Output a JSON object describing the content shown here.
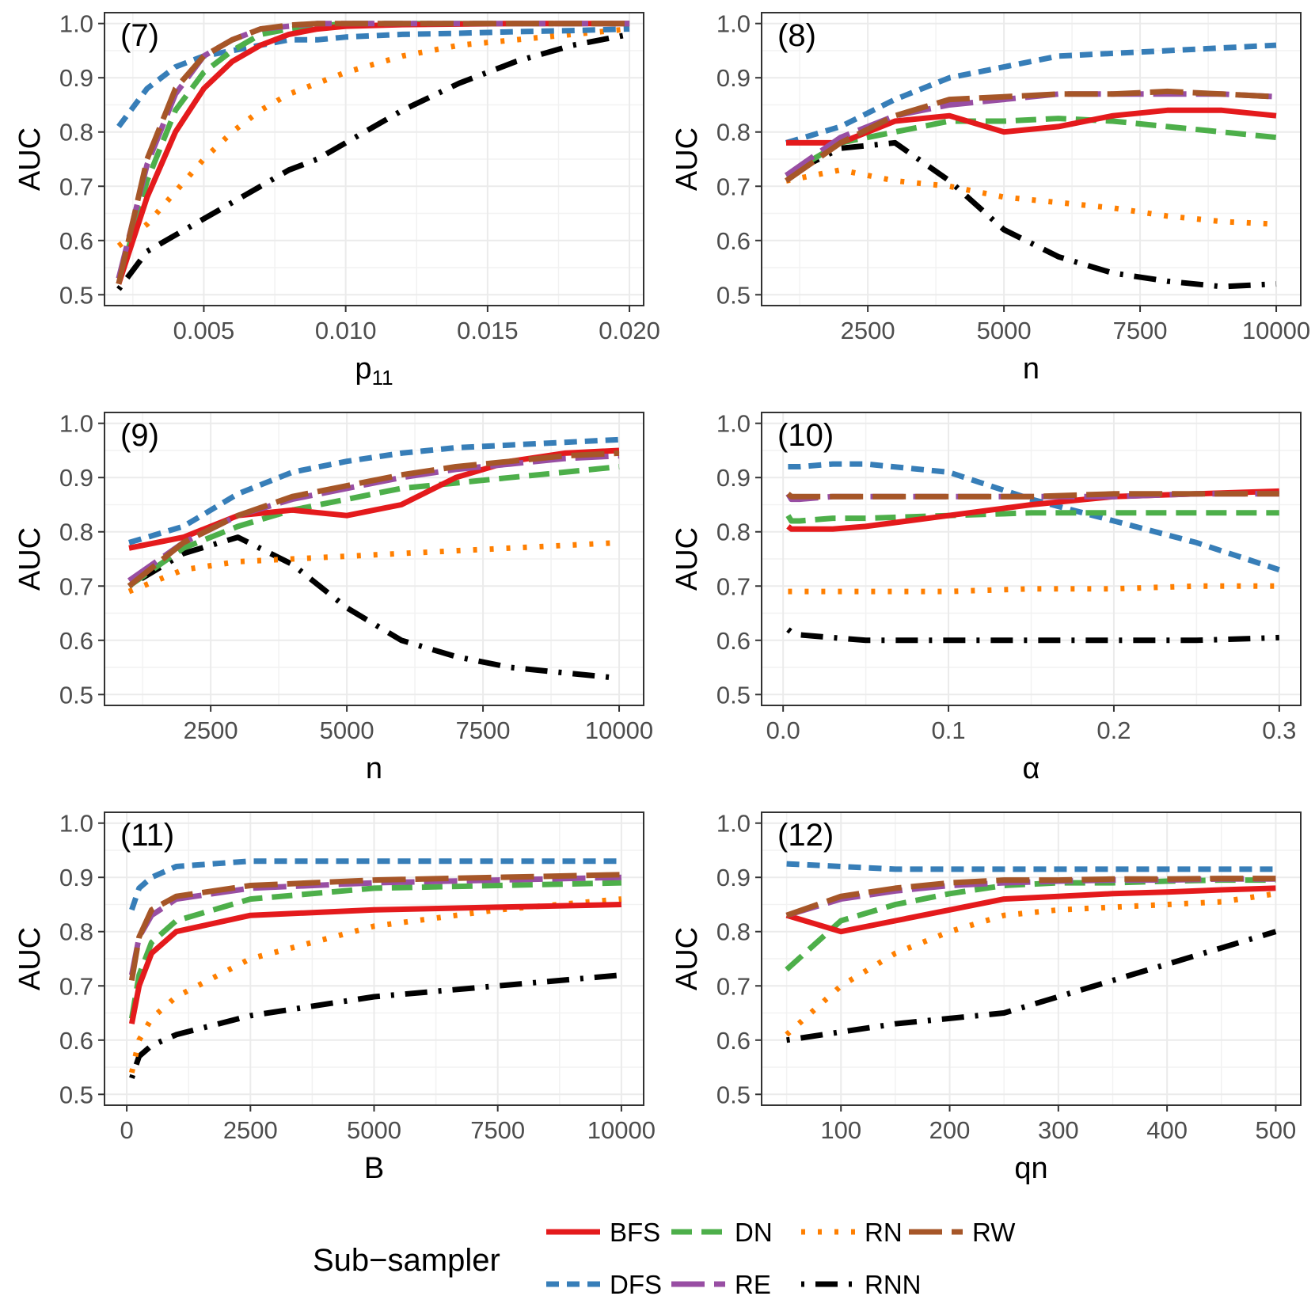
{
  "figure_type": "multi-panel line chart",
  "y_axis_label": "AUC",
  "legend": {
    "title": "Sub−sampler",
    "position": "bottom-center",
    "entries": [
      "BFS",
      "DN",
      "RN",
      "RW",
      "DFS",
      "RE",
      "RNN"
    ]
  },
  "series_styles": {
    "BFS": {
      "color": "#e41a1c",
      "dash": "solid"
    },
    "DFS": {
      "color": "#377eb8",
      "dash": "dashed-short"
    },
    "DN": {
      "color": "#4daf4a",
      "dash": "dashed"
    },
    "RE": {
      "color": "#984ea3",
      "dash": "long-dashed"
    },
    "RN": {
      "color": "#ff7f00",
      "dash": "dotted"
    },
    "RNN": {
      "color": "#000000",
      "dash": "dot-dash"
    },
    "RW": {
      "color": "#a65628",
      "dash": "long-dashed"
    }
  },
  "chart_data": [
    {
      "type": "line",
      "tag": "(7)",
      "xlabel": "p",
      "xlabel_sub": "11",
      "ylabel": "AUC",
      "xlim": [
        0.0015,
        0.0205
      ],
      "ylim": [
        0.48,
        1.02
      ],
      "xticks": [
        0.005,
        0.01,
        0.015,
        0.02
      ],
      "xtick_labels": [
        "0.005",
        "0.010",
        "0.015",
        "0.020"
      ],
      "yticks": [
        0.5,
        0.6,
        0.7,
        0.8,
        0.9,
        1.0
      ],
      "ytick_labels": [
        "0.5",
        "0.6",
        "0.7",
        "0.8",
        "0.9",
        "1.0"
      ],
      "x": [
        0.002,
        0.003,
        0.004,
        0.005,
        0.006,
        0.007,
        0.008,
        0.009,
        0.01,
        0.012,
        0.014,
        0.016,
        0.018,
        0.02
      ],
      "series": [
        {
          "name": "BFS",
          "values": [
            0.52,
            0.68,
            0.8,
            0.88,
            0.93,
            0.96,
            0.98,
            0.99,
            0.995,
            0.998,
            0.999,
            1.0,
            1.0,
            1.0
          ]
        },
        {
          "name": "DFS",
          "values": [
            0.81,
            0.88,
            0.92,
            0.94,
            0.95,
            0.96,
            0.97,
            0.97,
            0.975,
            0.98,
            0.982,
            0.985,
            0.987,
            0.99
          ]
        },
        {
          "name": "DN",
          "values": [
            0.52,
            0.71,
            0.84,
            0.91,
            0.95,
            0.98,
            0.99,
            0.995,
            1.0,
            1.0,
            1.0,
            1.0,
            1.0,
            1.0
          ]
        },
        {
          "name": "RE",
          "values": [
            0.53,
            0.74,
            0.87,
            0.94,
            0.97,
            0.99,
            0.995,
            1.0,
            1.0,
            1.0,
            1.0,
            1.0,
            1.0,
            1.0
          ]
        },
        {
          "name": "RN",
          "values": [
            0.59,
            0.63,
            0.69,
            0.75,
            0.8,
            0.84,
            0.87,
            0.89,
            0.91,
            0.94,
            0.96,
            0.97,
            0.98,
            0.99
          ]
        },
        {
          "name": "RNN",
          "values": [
            0.51,
            0.58,
            0.61,
            0.64,
            0.67,
            0.7,
            0.73,
            0.75,
            0.78,
            0.84,
            0.89,
            0.93,
            0.96,
            0.98
          ]
        },
        {
          "name": "RW",
          "values": [
            0.52,
            0.75,
            0.88,
            0.94,
            0.97,
            0.99,
            0.997,
            1.0,
            1.0,
            1.0,
            1.0,
            1.0,
            1.0,
            1.0
          ]
        }
      ]
    },
    {
      "type": "line",
      "tag": "(8)",
      "xlabel": "n",
      "ylabel": "AUC",
      "xlim": [
        550,
        10450
      ],
      "ylim": [
        0.48,
        1.02
      ],
      "xticks": [
        2500,
        5000,
        7500,
        10000
      ],
      "xtick_labels": [
        "2500",
        "5000",
        "7500",
        "10000"
      ],
      "yticks": [
        0.5,
        0.6,
        0.7,
        0.8,
        0.9,
        1.0
      ],
      "ytick_labels": [
        "0.5",
        "0.6",
        "0.7",
        "0.8",
        "0.9",
        "1.0"
      ],
      "x": [
        1000,
        2000,
        3000,
        4000,
        5000,
        6000,
        7000,
        8000,
        9000,
        10000
      ],
      "series": [
        {
          "name": "BFS",
          "values": [
            0.78,
            0.78,
            0.82,
            0.83,
            0.8,
            0.81,
            0.83,
            0.84,
            0.84,
            0.83
          ]
        },
        {
          "name": "DFS",
          "values": [
            0.78,
            0.81,
            0.86,
            0.9,
            0.92,
            0.94,
            0.945,
            0.95,
            0.955,
            0.96
          ]
        },
        {
          "name": "DN",
          "values": [
            0.72,
            0.78,
            0.8,
            0.82,
            0.82,
            0.825,
            0.82,
            0.81,
            0.8,
            0.79
          ]
        },
        {
          "name": "RE",
          "values": [
            0.72,
            0.79,
            0.83,
            0.85,
            0.86,
            0.87,
            0.87,
            0.87,
            0.87,
            0.865
          ]
        },
        {
          "name": "RN",
          "values": [
            0.71,
            0.73,
            0.71,
            0.7,
            0.68,
            0.67,
            0.66,
            0.645,
            0.635,
            0.63
          ]
        },
        {
          "name": "RNN",
          "values": [
            0.72,
            0.77,
            0.78,
            0.71,
            0.62,
            0.57,
            0.54,
            0.525,
            0.515,
            0.52
          ]
        },
        {
          "name": "RW",
          "values": [
            0.71,
            0.78,
            0.83,
            0.86,
            0.865,
            0.87,
            0.87,
            0.875,
            0.87,
            0.865
          ]
        }
      ]
    },
    {
      "type": "line",
      "tag": "(9)",
      "xlabel": "n",
      "ylabel": "AUC",
      "xlim": [
        550,
        10450
      ],
      "ylim": [
        0.48,
        1.02
      ],
      "xticks": [
        2500,
        5000,
        7500,
        10000
      ],
      "xtick_labels": [
        "2500",
        "5000",
        "7500",
        "10000"
      ],
      "yticks": [
        0.5,
        0.6,
        0.7,
        0.8,
        0.9,
        1.0
      ],
      "ytick_labels": [
        "0.5",
        "0.6",
        "0.7",
        "0.8",
        "0.9",
        "1.0"
      ],
      "x": [
        1000,
        2000,
        3000,
        4000,
        5000,
        6000,
        7000,
        8000,
        9000,
        10000
      ],
      "series": [
        {
          "name": "BFS",
          "values": [
            0.77,
            0.79,
            0.83,
            0.84,
            0.83,
            0.85,
            0.9,
            0.93,
            0.945,
            0.95
          ]
        },
        {
          "name": "DFS",
          "values": [
            0.78,
            0.81,
            0.87,
            0.91,
            0.93,
            0.945,
            0.955,
            0.96,
            0.965,
            0.97
          ]
        },
        {
          "name": "DN",
          "values": [
            0.7,
            0.77,
            0.81,
            0.84,
            0.86,
            0.88,
            0.89,
            0.9,
            0.91,
            0.92
          ]
        },
        {
          "name": "RE",
          "values": [
            0.71,
            0.78,
            0.83,
            0.86,
            0.88,
            0.9,
            0.915,
            0.925,
            0.935,
            0.94
          ]
        },
        {
          "name": "RN",
          "values": [
            0.69,
            0.73,
            0.745,
            0.75,
            0.755,
            0.76,
            0.765,
            0.77,
            0.775,
            0.78
          ]
        },
        {
          "name": "RNN",
          "values": [
            0.7,
            0.76,
            0.79,
            0.74,
            0.66,
            0.6,
            0.57,
            0.55,
            0.54,
            0.53
          ]
        },
        {
          "name": "RW",
          "values": [
            0.7,
            0.78,
            0.83,
            0.865,
            0.885,
            0.905,
            0.92,
            0.93,
            0.94,
            0.945
          ]
        }
      ]
    },
    {
      "type": "line",
      "tag": "(10)",
      "xlabel": "α",
      "ylabel": "AUC",
      "xlim": [
        -0.013,
        0.313
      ],
      "ylim": [
        0.48,
        1.02
      ],
      "xticks": [
        0.0,
        0.1,
        0.2,
        0.3
      ],
      "xtick_labels": [
        "0.0",
        "0.1",
        "0.2",
        "0.3"
      ],
      "yticks": [
        0.5,
        0.6,
        0.7,
        0.8,
        0.9,
        1.0
      ],
      "ytick_labels": [
        "0.5",
        "0.6",
        "0.7",
        "0.8",
        "0.9",
        "1.0"
      ],
      "x": [
        0.003,
        0.005,
        0.01,
        0.03,
        0.05,
        0.1,
        0.15,
        0.2,
        0.25,
        0.3
      ],
      "series": [
        {
          "name": "BFS",
          "values": [
            0.81,
            0.805,
            0.805,
            0.805,
            0.81,
            0.83,
            0.85,
            0.865,
            0.87,
            0.875
          ]
        },
        {
          "name": "DFS",
          "values": [
            0.92,
            0.92,
            0.92,
            0.925,
            0.925,
            0.91,
            0.86,
            0.82,
            0.78,
            0.73
          ]
        },
        {
          "name": "DN",
          "values": [
            0.83,
            0.82,
            0.82,
            0.825,
            0.825,
            0.83,
            0.835,
            0.835,
            0.835,
            0.835
          ]
        },
        {
          "name": "RE",
          "values": [
            0.87,
            0.86,
            0.86,
            0.865,
            0.865,
            0.865,
            0.865,
            0.865,
            0.87,
            0.87
          ]
        },
        {
          "name": "RN",
          "values": [
            0.69,
            0.69,
            0.69,
            0.69,
            0.69,
            0.69,
            0.695,
            0.695,
            0.7,
            0.7
          ]
        },
        {
          "name": "RNN",
          "values": [
            0.62,
            0.615,
            0.61,
            0.605,
            0.6,
            0.6,
            0.6,
            0.6,
            0.6,
            0.605
          ]
        },
        {
          "name": "RW",
          "values": [
            0.87,
            0.865,
            0.865,
            0.865,
            0.865,
            0.865,
            0.865,
            0.87,
            0.87,
            0.87
          ]
        }
      ]
    },
    {
      "type": "line",
      "tag": "(11)",
      "xlabel": "B",
      "ylabel": "AUC",
      "xlim": [
        -450,
        10450
      ],
      "ylim": [
        0.48,
        1.02
      ],
      "xticks": [
        0,
        2500,
        5000,
        7500,
        10000
      ],
      "xtick_labels": [
        "0",
        "2500",
        "5000",
        "7500",
        "10000"
      ],
      "yticks": [
        0.5,
        0.6,
        0.7,
        0.8,
        0.9,
        1.0
      ],
      "ytick_labels": [
        "0.5",
        "0.6",
        "0.7",
        "0.8",
        "0.9",
        "1.0"
      ],
      "x": [
        100,
        250,
        500,
        1000,
        2500,
        5000,
        7500,
        10000
      ],
      "series": [
        {
          "name": "BFS",
          "values": [
            0.63,
            0.7,
            0.76,
            0.8,
            0.83,
            0.84,
            0.845,
            0.85
          ]
        },
        {
          "name": "DFS",
          "values": [
            0.84,
            0.88,
            0.9,
            0.92,
            0.93,
            0.93,
            0.93,
            0.93
          ]
        },
        {
          "name": "DN",
          "values": [
            0.64,
            0.72,
            0.78,
            0.82,
            0.86,
            0.88,
            0.885,
            0.89
          ]
        },
        {
          "name": "RE",
          "values": [
            0.72,
            0.79,
            0.83,
            0.86,
            0.88,
            0.89,
            0.895,
            0.9
          ]
        },
        {
          "name": "RN",
          "values": [
            0.54,
            0.6,
            0.64,
            0.68,
            0.75,
            0.81,
            0.84,
            0.86
          ]
        },
        {
          "name": "RNN",
          "values": [
            0.53,
            0.57,
            0.59,
            0.61,
            0.645,
            0.68,
            0.7,
            0.72
          ]
        },
        {
          "name": "RW",
          "values": [
            0.71,
            0.79,
            0.84,
            0.865,
            0.885,
            0.895,
            0.9,
            0.905
          ]
        }
      ]
    },
    {
      "type": "line",
      "tag": "(12)",
      "xlabel": "qn",
      "ylabel": "AUC",
      "xlim": [
        27,
        523
      ],
      "ylim": [
        0.48,
        1.02
      ],
      "xticks": [
        100,
        200,
        300,
        400,
        500
      ],
      "xtick_labels": [
        "100",
        "200",
        "300",
        "400",
        "500"
      ],
      "yticks": [
        0.5,
        0.6,
        0.7,
        0.8,
        0.9,
        1.0
      ],
      "ytick_labels": [
        "0.5",
        "0.6",
        "0.7",
        "0.8",
        "0.9",
        "1.0"
      ],
      "x": [
        50,
        100,
        150,
        200,
        250,
        300,
        350,
        400,
        450,
        500
      ],
      "series": [
        {
          "name": "BFS",
          "values": [
            0.83,
            0.8,
            0.82,
            0.84,
            0.86,
            0.865,
            0.87,
            0.873,
            0.877,
            0.88
          ]
        },
        {
          "name": "DFS",
          "values": [
            0.925,
            0.92,
            0.915,
            0.915,
            0.915,
            0.915,
            0.915,
            0.915,
            0.915,
            0.915
          ]
        },
        {
          "name": "DN",
          "values": [
            0.73,
            0.82,
            0.85,
            0.87,
            0.885,
            0.89,
            0.89,
            0.893,
            0.895,
            0.895
          ]
        },
        {
          "name": "RE",
          "values": [
            0.83,
            0.86,
            0.875,
            0.885,
            0.89,
            0.893,
            0.895,
            0.895,
            0.897,
            0.897
          ]
        },
        {
          "name": "RN",
          "values": [
            0.61,
            0.7,
            0.76,
            0.8,
            0.83,
            0.84,
            0.845,
            0.85,
            0.855,
            0.87
          ]
        },
        {
          "name": "RNN",
          "values": [
            0.6,
            0.615,
            0.63,
            0.64,
            0.65,
            0.68,
            0.71,
            0.74,
            0.77,
            0.8
          ]
        },
        {
          "name": "RW",
          "values": [
            0.83,
            0.865,
            0.88,
            0.89,
            0.895,
            0.895,
            0.897,
            0.897,
            0.898,
            0.898
          ]
        }
      ]
    }
  ]
}
